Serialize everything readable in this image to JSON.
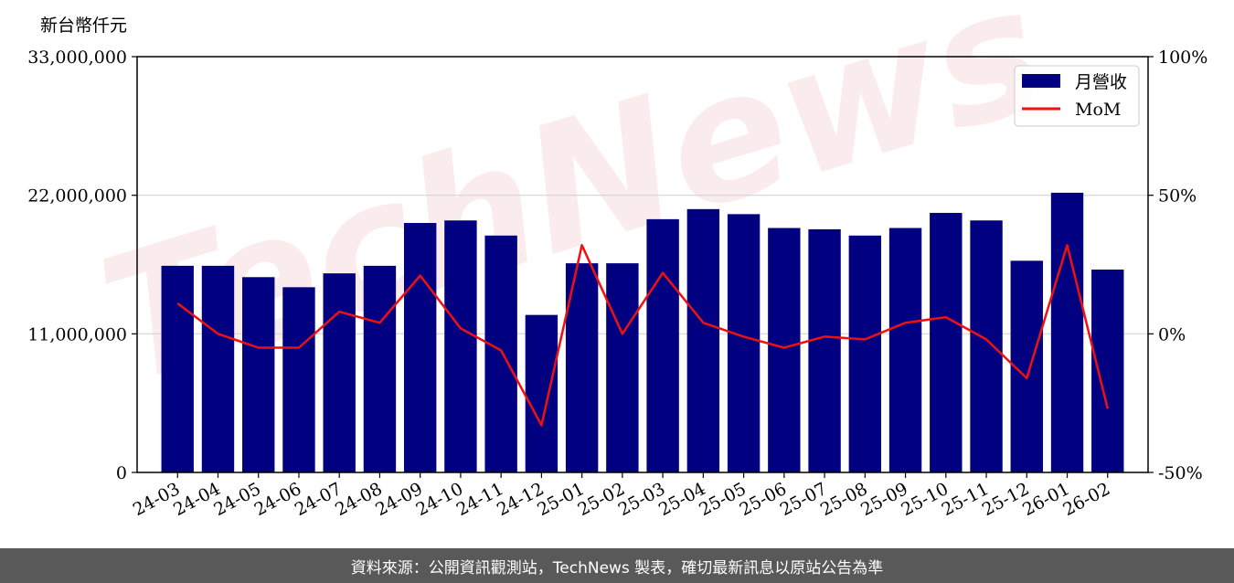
{
  "chart_data": {
    "type": "bar",
    "y_unit_label": "新台幣仟元",
    "categories": [
      "24-03",
      "24-04",
      "24-05",
      "24-06",
      "24-07",
      "24-08",
      "24-09",
      "24-10",
      "24-11",
      "24-12",
      "25-01",
      "25-02",
      "25-03",
      "25-04",
      "25-05",
      "25-06",
      "25-07",
      "25-08",
      "25-09",
      "25-10",
      "25-11",
      "25-12",
      "26-01",
      "26-02"
    ],
    "series": [
      {
        "name": "月營收",
        "type": "bar",
        "axis": "left",
        "color": "#000080",
        "values": [
          16400000,
          16400000,
          15500000,
          14700000,
          15800000,
          16400000,
          19800000,
          20000000,
          18800000,
          12500000,
          16600000,
          16600000,
          20100000,
          20900000,
          20500000,
          19400000,
          19300000,
          18800000,
          19400000,
          20600000,
          20000000,
          16800000,
          22200000,
          16100000
        ]
      },
      {
        "name": "MoM",
        "type": "line",
        "axis": "right",
        "color": "#ee1111",
        "values": [
          11,
          0,
          -5,
          -5,
          8,
          4,
          21,
          2,
          -6,
          -33,
          32,
          0,
          22,
          4,
          -1,
          -5,
          -1,
          -2,
          4,
          6,
          -2,
          -16,
          32,
          -27
        ]
      }
    ],
    "y_left": {
      "min": 0,
      "max": 33000000,
      "ticks": [
        0,
        11000000,
        22000000,
        33000000
      ],
      "tick_labels": [
        "0",
        "11,000,000",
        "22,000,000",
        "33,000,000"
      ]
    },
    "y_right": {
      "min": -50,
      "max": 100,
      "ticks": [
        -50,
        0,
        50,
        100
      ],
      "tick_labels": [
        "-50%",
        "0%",
        "50%",
        "100%"
      ]
    },
    "grid": "horizontal",
    "legend_position": "top-right"
  },
  "watermark": {
    "text": "TechNews"
  },
  "footer": {
    "text": "資料來源：公開資訊觀測站，TechNews 製表，確切最新訊息以原站公告為準"
  }
}
